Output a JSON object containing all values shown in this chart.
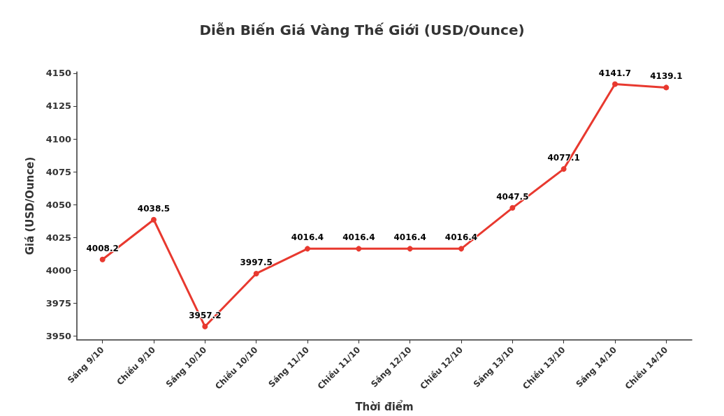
{
  "chart_data": {
    "type": "line",
    "title": "Diễn Biến Giá Vàng Thế Giới (USD/Ounce)",
    "xlabel": "Thời điểm",
    "ylabel": "Giá (USD/Ounce)",
    "categories": [
      "Sáng 9/10",
      "Chiều 9/10",
      "Sáng 10/10",
      "Chiều 10/10",
      "Sáng 11/10",
      "Chiều 11/10",
      "Sáng 12/10",
      "Chiều 12/10",
      "Sáng 13/10",
      "Chiều 13/10",
      "Sáng 14/10",
      "Chiều 14/10"
    ],
    "series": [
      {
        "color": "#e8392f",
        "values": [
          4008.2,
          4038.5,
          3957.2,
          3997.5,
          4016.4,
          4016.4,
          4016.4,
          4016.4,
          4047.5,
          4077.1,
          4141.7,
          4139.1
        ]
      }
    ],
    "ylim": [
      3947,
      4151
    ],
    "yticks": [
      3950,
      3975,
      4000,
      4025,
      4050,
      4075,
      4100,
      4125,
      4150
    ],
    "data_labels": true,
    "marker": "circle",
    "line_style": "solid",
    "grid": false
  }
}
